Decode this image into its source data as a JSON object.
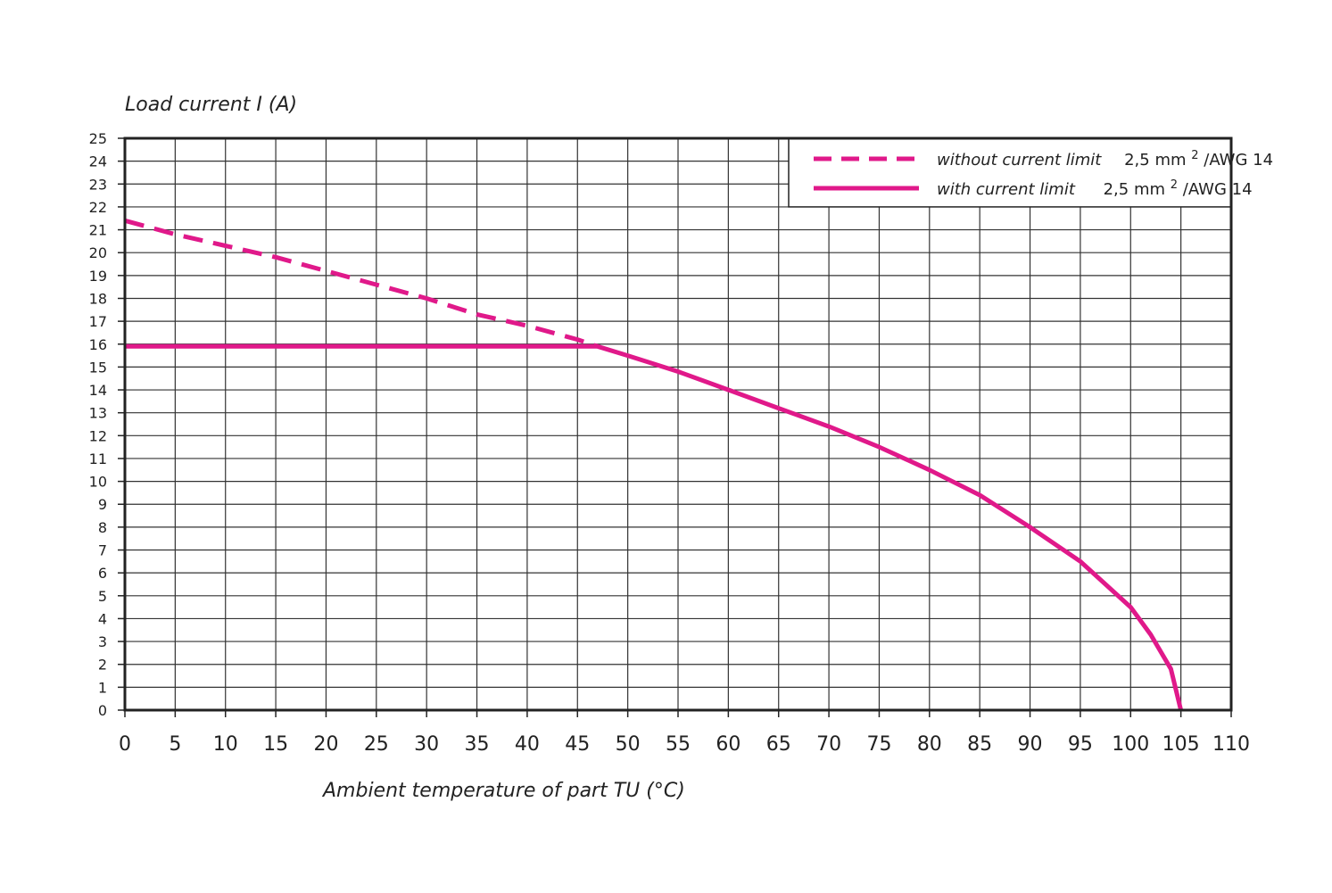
{
  "chart_data": {
    "type": "line",
    "ylabel": "Load current I (A)",
    "xlabel": "Ambient temperature of part TU (°C)",
    "xlim": [
      0,
      110
    ],
    "ylim": [
      0,
      25
    ],
    "x_ticks": [
      0,
      5,
      10,
      15,
      20,
      25,
      30,
      35,
      40,
      45,
      50,
      55,
      60,
      65,
      70,
      75,
      80,
      85,
      90,
      95,
      100,
      105,
      110
    ],
    "y_ticks": [
      0,
      1,
      2,
      3,
      4,
      5,
      6,
      7,
      8,
      9,
      10,
      11,
      12,
      13,
      14,
      15,
      16,
      17,
      18,
      19,
      20,
      21,
      22,
      23,
      24,
      25
    ],
    "grid": true,
    "legend_position": "top-right",
    "line_color": "#e0198a",
    "series": [
      {
        "name": "without current limit",
        "size_label": "2,5 mm",
        "superscript": "2",
        "awg_label": "/AWG 14",
        "style": "dashed",
        "x": [
          0,
          5,
          10,
          15,
          20,
          25,
          30,
          35,
          40,
          45,
          47
        ],
        "y": [
          21.4,
          20.8,
          20.3,
          19.8,
          19.2,
          18.6,
          18.0,
          17.3,
          16.8,
          16.2,
          15.9
        ]
      },
      {
        "name": "with current limit",
        "size_label": "2,5 mm",
        "superscript": "2",
        "awg_label": "/AWG 14",
        "style": "solid",
        "x": [
          0,
          47,
          50,
          55,
          60,
          65,
          70,
          75,
          80,
          85,
          90,
          95,
          100,
          102,
          104,
          105
        ],
        "y": [
          15.9,
          15.9,
          15.5,
          14.8,
          14.0,
          13.2,
          12.4,
          11.5,
          10.5,
          9.4,
          8.0,
          6.5,
          4.5,
          3.3,
          1.8,
          0
        ]
      }
    ]
  }
}
